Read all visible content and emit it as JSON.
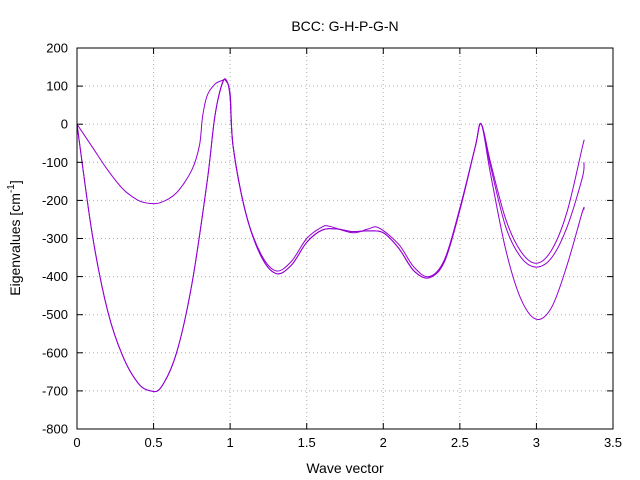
{
  "chart_data": {
    "type": "line",
    "title": "BCC: G-H-P-G-N",
    "xlabel": "Wave vector",
    "ylabel_main": "Eigenvalues [cm",
    "ylabel_sup": "-1",
    "ylabel_tail": "]",
    "xlim": [
      0,
      3.5
    ],
    "ylim": [
      -800,
      200
    ],
    "xticks": [
      0,
      0.5,
      1,
      1.5,
      2,
      2.5,
      3,
      3.5
    ],
    "xtick_labels": [
      "0",
      "0.5",
      "1",
      "1.5",
      "2",
      "2.5",
      "3",
      "3.5"
    ],
    "yticks": [
      200,
      100,
      0,
      -100,
      -200,
      -300,
      -400,
      -500,
      -600,
      -700,
      -800
    ],
    "ytick_labels": [
      "200",
      "100",
      "0",
      "-100",
      "-200",
      "-300",
      "-400",
      "-500",
      "-600",
      "-700",
      "-800"
    ],
    "grid": true,
    "line_color": "#9400d3",
    "series": [
      {
        "points": [
          [
            0,
            0
          ],
          [
            0.1,
            -290
          ],
          [
            0.2,
            -490
          ],
          [
            0.3,
            -610
          ],
          [
            0.4,
            -680
          ],
          [
            0.48,
            -700
          ],
          [
            0.55,
            -690
          ],
          [
            0.65,
            -600
          ],
          [
            0.75,
            -420
          ],
          [
            0.85,
            -150
          ],
          [
            0.9,
            20
          ],
          [
            0.95,
            108
          ],
          [
            0.98,
            112
          ],
          [
            1.0,
            70
          ],
          [
            1.02,
            -60
          ],
          [
            1.1,
            -230
          ],
          [
            1.2,
            -340
          ],
          [
            1.3,
            -385
          ],
          [
            1.4,
            -360
          ],
          [
            1.5,
            -300
          ],
          [
            1.6,
            -270
          ],
          [
            1.65,
            -268
          ],
          [
            1.8,
            -285
          ],
          [
            1.9,
            -275
          ],
          [
            1.97,
            -272
          ],
          [
            2.1,
            -315
          ],
          [
            2.2,
            -375
          ],
          [
            2.3,
            -400
          ],
          [
            2.4,
            -355
          ],
          [
            2.5,
            -220
          ],
          [
            2.6,
            -60
          ],
          [
            2.64,
            0
          ],
          [
            2.7,
            -110
          ],
          [
            2.8,
            -270
          ],
          [
            2.9,
            -350
          ],
          [
            3.0,
            -375
          ],
          [
            3.1,
            -350
          ],
          [
            3.2,
            -270
          ],
          [
            3.3,
            -140
          ],
          [
            3.31,
            -100
          ]
        ]
      },
      {
        "points": [
          [
            0,
            0
          ],
          [
            0.1,
            -290
          ],
          [
            0.2,
            -490
          ],
          [
            0.3,
            -610
          ],
          [
            0.4,
            -680
          ],
          [
            0.48,
            -700
          ],
          [
            0.55,
            -690
          ],
          [
            0.65,
            -600
          ],
          [
            0.75,
            -420
          ],
          [
            0.85,
            -150
          ],
          [
            0.9,
            20
          ],
          [
            0.95,
            110
          ],
          [
            0.98,
            112
          ],
          [
            1.0,
            70
          ],
          [
            1.02,
            -60
          ],
          [
            1.1,
            -230
          ],
          [
            1.2,
            -345
          ],
          [
            1.3,
            -392
          ],
          [
            1.4,
            -370
          ],
          [
            1.5,
            -310
          ],
          [
            1.6,
            -278
          ],
          [
            1.7,
            -275
          ],
          [
            1.8,
            -282
          ],
          [
            1.9,
            -280
          ],
          [
            2.0,
            -285
          ],
          [
            2.1,
            -325
          ],
          [
            2.2,
            -385
          ],
          [
            2.3,
            -403
          ],
          [
            2.4,
            -360
          ],
          [
            2.5,
            -225
          ],
          [
            2.6,
            -60
          ],
          [
            2.64,
            0
          ],
          [
            2.7,
            -100
          ],
          [
            2.8,
            -250
          ],
          [
            2.9,
            -335
          ],
          [
            3.0,
            -365
          ],
          [
            3.1,
            -330
          ],
          [
            3.2,
            -230
          ],
          [
            3.3,
            -60
          ],
          [
            3.31,
            -45
          ]
        ]
      },
      {
        "points": [
          [
            0,
            0
          ],
          [
            0.1,
            -60
          ],
          [
            0.2,
            -120
          ],
          [
            0.3,
            -170
          ],
          [
            0.4,
            -200
          ],
          [
            0.48,
            -208
          ],
          [
            0.55,
            -205
          ],
          [
            0.65,
            -180
          ],
          [
            0.75,
            -120
          ],
          [
            0.8,
            -55
          ],
          [
            0.82,
            20
          ],
          [
            0.85,
            75
          ],
          [
            0.9,
            105
          ],
          [
            0.95,
            115
          ],
          [
            0.97,
            115
          ],
          [
            1.0,
            80
          ],
          [
            1.02,
            -60
          ],
          [
            1.1,
            -230
          ],
          [
            1.2,
            -345
          ],
          [
            1.3,
            -392
          ],
          [
            1.4,
            -370
          ],
          [
            1.5,
            -310
          ],
          [
            1.6,
            -278
          ],
          [
            1.7,
            -275
          ],
          [
            1.8,
            -282
          ],
          [
            1.9,
            -280
          ],
          [
            2.0,
            -285
          ],
          [
            2.1,
            -325
          ],
          [
            2.2,
            -385
          ],
          [
            2.3,
            -403
          ],
          [
            2.4,
            -360
          ],
          [
            2.5,
            -225
          ],
          [
            2.6,
            -60
          ],
          [
            2.64,
            0
          ],
          [
            2.7,
            -130
          ],
          [
            2.8,
            -330
          ],
          [
            2.9,
            -460
          ],
          [
            3.0,
            -512
          ],
          [
            3.1,
            -480
          ],
          [
            3.2,
            -370
          ],
          [
            3.3,
            -230
          ],
          [
            3.31,
            -225
          ]
        ]
      }
    ]
  }
}
